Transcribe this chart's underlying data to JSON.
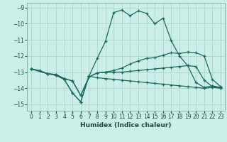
{
  "xlabel": "Humidex (Indice chaleur)",
  "background_color": "#cceee8",
  "grid_color": "#b0d8d0",
  "line_color": "#1a6b5a",
  "xlim": [
    -0.5,
    23.5
  ],
  "ylim": [
    -15.4,
    -8.7
  ],
  "xticks": [
    0,
    1,
    2,
    3,
    4,
    5,
    6,
    7,
    8,
    9,
    10,
    11,
    12,
    13,
    14,
    15,
    16,
    17,
    18,
    19,
    20,
    21,
    22,
    23
  ],
  "yticks": [
    -15,
    -14,
    -13,
    -12,
    -11,
    -10,
    -9
  ],
  "lines": [
    {
      "x": [
        0,
        1,
        2,
        3,
        4,
        5,
        6,
        7,
        8,
        9,
        10,
        11,
        12,
        13,
        14,
        15,
        16,
        17,
        18,
        19,
        20,
        21,
        22,
        23
      ],
      "y": [
        -12.8,
        -12.9,
        -13.1,
        -13.2,
        -13.45,
        -14.3,
        -14.85,
        -13.25,
        -12.15,
        -11.1,
        -9.3,
        -9.15,
        -9.5,
        -9.2,
        -9.35,
        -10.0,
        -9.65,
        -11.05,
        -12.0,
        -12.6,
        -13.65,
        -13.95,
        -13.85,
        -13.95
      ]
    },
    {
      "x": [
        0,
        2,
        3,
        4,
        5,
        6,
        7,
        8,
        9,
        10,
        11,
        12,
        13,
        14,
        15,
        16,
        17,
        18,
        19,
        20,
        21,
        22,
        23
      ],
      "y": [
        -12.8,
        -13.1,
        -13.15,
        -13.4,
        -13.55,
        -14.45,
        -13.3,
        -13.05,
        -13.0,
        -12.9,
        -12.75,
        -12.5,
        -12.3,
        -12.15,
        -12.1,
        -11.95,
        -11.8,
        -11.85,
        -11.75,
        -11.8,
        -12.0,
        -13.45,
        -13.9
      ]
    },
    {
      "x": [
        0,
        2,
        3,
        4,
        5,
        6,
        7,
        8,
        9,
        10,
        11,
        12,
        13,
        14,
        15,
        16,
        17,
        18,
        19,
        20,
        21,
        22,
        23
      ],
      "y": [
        -12.8,
        -13.1,
        -13.15,
        -13.4,
        -13.55,
        -14.45,
        -13.3,
        -13.05,
        -13.0,
        -13.0,
        -13.0,
        -12.95,
        -12.9,
        -12.85,
        -12.8,
        -12.75,
        -12.7,
        -12.65,
        -12.6,
        -12.65,
        -13.5,
        -13.9,
        -14.0
      ]
    },
    {
      "x": [
        0,
        2,
        3,
        4,
        5,
        6,
        7,
        8,
        9,
        10,
        11,
        12,
        13,
        14,
        15,
        16,
        17,
        18,
        19,
        20,
        21,
        22,
        23
      ],
      "y": [
        -12.8,
        -13.1,
        -13.2,
        -13.45,
        -14.3,
        -14.85,
        -13.25,
        -13.35,
        -13.4,
        -13.45,
        -13.5,
        -13.55,
        -13.6,
        -13.65,
        -13.7,
        -13.75,
        -13.8,
        -13.85,
        -13.9,
        -13.95,
        -14.0,
        -13.95,
        -14.0
      ]
    }
  ]
}
